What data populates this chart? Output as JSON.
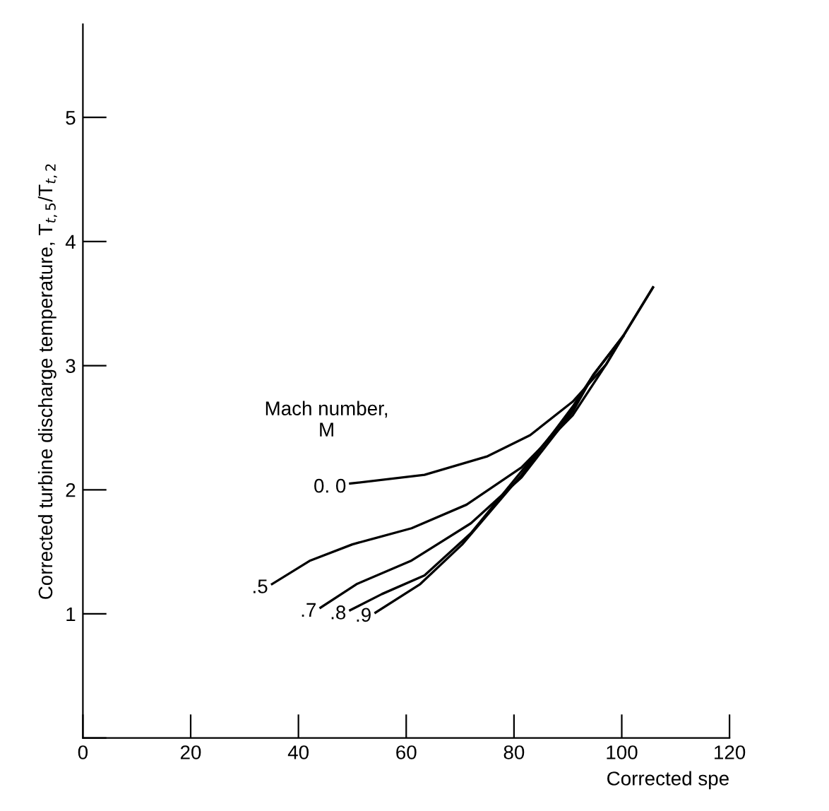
{
  "chart_data": {
    "type": "line",
    "xlabel": "Corrected spe",
    "ylabel": "Corrected turbine discharge temperature, T$_{t,5}$/T$_{t,2}$",
    "legend_title": "Mach number,\nM",
    "xlim": [
      0,
      120
    ],
    "ylim": [
      0,
      5.75
    ],
    "xticks": [
      0,
      20,
      40,
      60,
      80,
      100,
      120
    ],
    "yticks": [
      {
        "value": 0,
        "label": null
      },
      1,
      2,
      3,
      4,
      5
    ],
    "grid": false,
    "legend": false,
    "marker": "none",
    "line_style": "solid",
    "series": [
      {
        "name": "0. 0",
        "color": "#000000",
        "x": [
          49.6,
          63.4,
          75.1,
          83.0,
          90.9,
          97.1,
          100.3,
          105.8
        ],
        "values": [
          2.05,
          2.12,
          2.27,
          2.44,
          2.71,
          3.01,
          3.24,
          3.63
        ]
      },
      {
        "name": ".5",
        "color": "#000000",
        "x": [
          35.1,
          42.2,
          50.0,
          61.0,
          71.2,
          81.4,
          90.9,
          97.1,
          100.3,
          105.8
        ],
        "values": [
          1.24,
          1.43,
          1.56,
          1.69,
          1.88,
          2.18,
          2.6,
          3.01,
          3.24,
          3.63
        ]
      },
      {
        "name": ".7",
        "color": "#000000",
        "x": [
          44.1,
          50.8,
          61.0,
          72.0,
          81.4,
          90.9,
          94.8,
          100.3
        ],
        "values": [
          1.05,
          1.24,
          1.43,
          1.73,
          2.1,
          2.63,
          2.93,
          3.24
        ]
      },
      {
        "name": ".8",
        "color": "#000000",
        "x": [
          49.6,
          55.5,
          63.4,
          72.0,
          81.4,
          90.9,
          94.8,
          100.3
        ],
        "values": [
          1.03,
          1.16,
          1.31,
          1.65,
          2.15,
          2.65,
          2.93,
          3.24
        ]
      },
      {
        "name": ".9",
        "color": "#000000",
        "x": [
          54.3,
          62.6,
          70.4,
          81.4,
          90.9,
          94.8,
          100.3
        ],
        "values": [
          1.01,
          1.24,
          1.56,
          2.12,
          2.67,
          2.93,
          3.24
        ]
      }
    ]
  }
}
